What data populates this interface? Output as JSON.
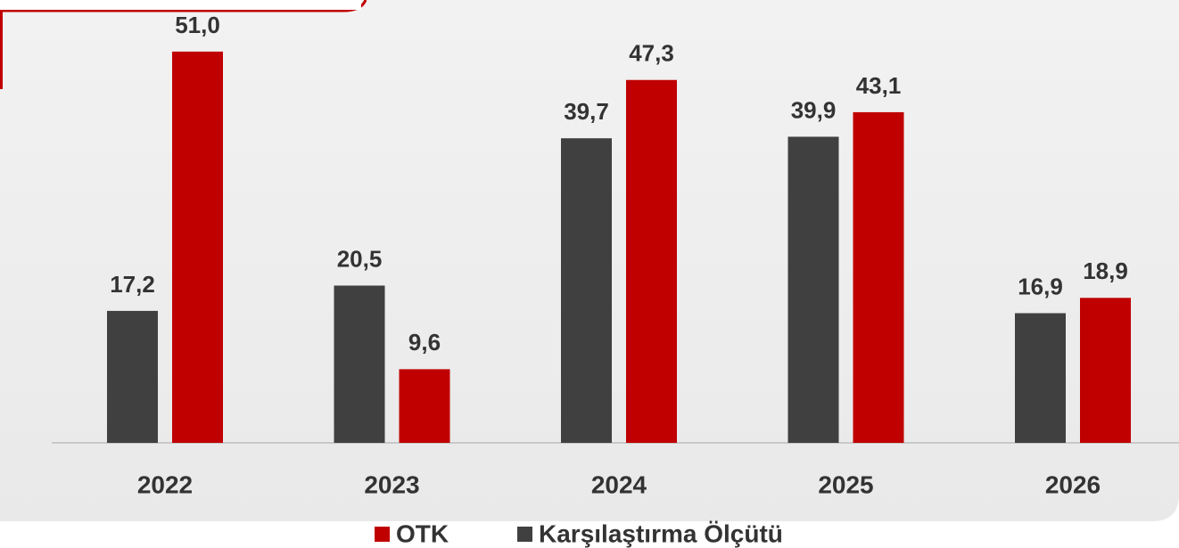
{
  "chart_data": {
    "type": "bar",
    "categories": [
      "2022",
      "2023",
      "2024",
      "2025",
      "2026"
    ],
    "series": [
      {
        "name": "OTK",
        "color": "#c00000",
        "values": [
          51.0,
          9.6,
          47.3,
          43.1,
          18.9
        ],
        "value_labels": [
          "51,0",
          "9,6",
          "47,3",
          "43,1",
          "18,9"
        ]
      },
      {
        "name": "Karşılaştırma Ölçütü",
        "color": "#404040",
        "values": [
          17.2,
          20.5,
          39.7,
          39.9,
          16.9
        ],
        "value_labels": [
          "17,2",
          "20,5",
          "39,7",
          "39,9",
          "16,9"
        ]
      }
    ],
    "ylim": [
      0,
      55
    ],
    "legend": "bottom"
  }
}
